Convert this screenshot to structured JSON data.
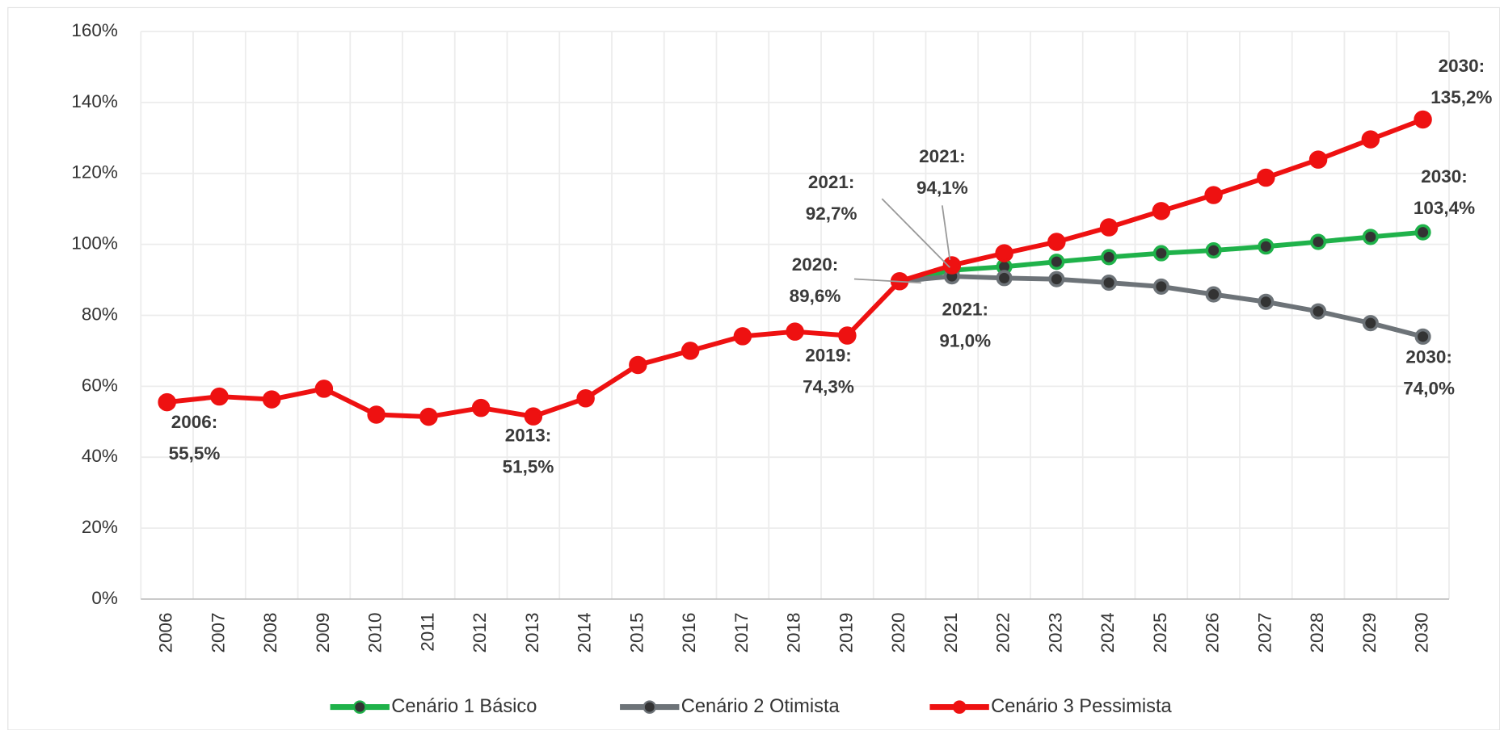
{
  "chart_data": {
    "type": "line",
    "categories": [
      "2006",
      "2007",
      "2008",
      "2009",
      "2010",
      "2011",
      "2012",
      "2013",
      "2014",
      "2015",
      "2016",
      "2017",
      "2018",
      "2019",
      "2020",
      "2021",
      "2022",
      "2023",
      "2024",
      "2025",
      "2026",
      "2027",
      "2028",
      "2029",
      "2030"
    ],
    "series": [
      {
        "name": "Cenário 1 Básico",
        "color": "#1fb24a",
        "values": [
          null,
          null,
          null,
          null,
          null,
          null,
          null,
          null,
          null,
          null,
          null,
          null,
          null,
          null,
          89.6,
          92.7,
          93.7,
          95.1,
          96.4,
          97.5,
          98.3,
          99.4,
          100.7,
          102.1,
          103.4
        ]
      },
      {
        "name": "Cenário 2 Otimista",
        "color": "#6d7378",
        "values": [
          null,
          null,
          null,
          null,
          null,
          null,
          null,
          null,
          null,
          null,
          null,
          null,
          null,
          null,
          89.6,
          91.0,
          90.5,
          90.2,
          89.2,
          88.1,
          85.9,
          83.8,
          81.1,
          77.8,
          74.0
        ]
      },
      {
        "name": "Cenário 3 Pessimista",
        "color": "#ee1111",
        "values": [
          55.5,
          57.1,
          56.3,
          59.3,
          52.0,
          51.4,
          53.9,
          51.5,
          56.6,
          66.0,
          70.0,
          74.1,
          75.4,
          74.3,
          89.6,
          94.1,
          97.5,
          100.7,
          104.8,
          109.4,
          113.9,
          118.8,
          123.9,
          129.6,
          135.2
        ]
      }
    ],
    "ylim": [
      0,
      160
    ],
    "yticks": [
      {
        "value": 0,
        "label": "0%"
      },
      {
        "value": 20,
        "label": "20%"
      },
      {
        "value": 40,
        "label": "40%"
      },
      {
        "value": 60,
        "label": "60%"
      },
      {
        "value": 80,
        "label": "80%"
      },
      {
        "value": 100,
        "label": "100%"
      },
      {
        "value": 120,
        "label": "120%"
      },
      {
        "value": 140,
        "label": "140%"
      },
      {
        "value": 160,
        "label": "160%"
      }
    ],
    "grid": true,
    "legend": "bottom",
    "annotations": [
      [
        "2006:",
        "55,5%"
      ],
      [
        "2013:",
        "51,5%"
      ],
      [
        "2019:",
        "74,3%"
      ],
      [
        "2020:",
        "89,6%"
      ],
      [
        "2021:",
        "92,7%"
      ],
      [
        "2021:",
        "94,1%"
      ],
      [
        "2021:",
        "91,0%"
      ],
      [
        "2030:",
        "135,2%"
      ],
      [
        "2030:",
        "103,4%"
      ],
      [
        "2030:",
        "74,0%"
      ]
    ]
  }
}
